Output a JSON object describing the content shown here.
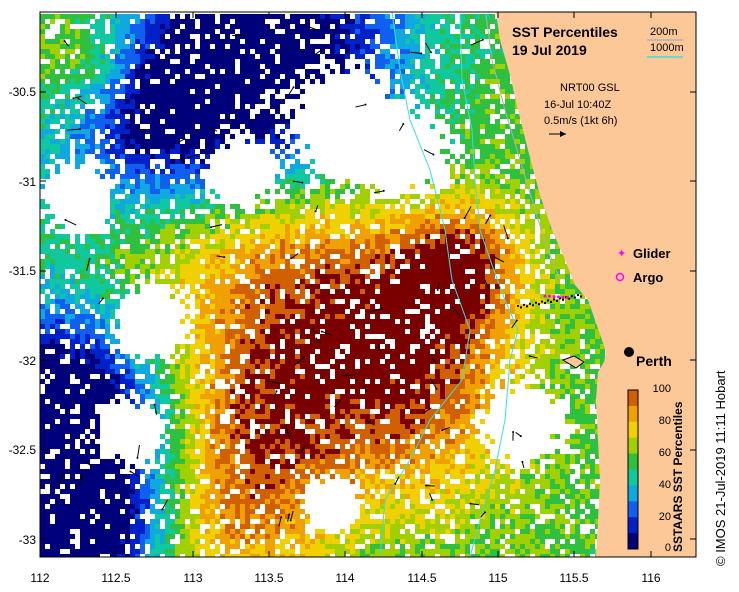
{
  "title": {
    "line1": "SST Percentiles",
    "line2": "19 Jul 2019"
  },
  "depth_legend": {
    "label_200": "200m",
    "label_1000": "1000m",
    "color_200": "#b0b0b0",
    "color_1000": "#36e0e0"
  },
  "current": {
    "line1": "NRT00 GSL",
    "line2": "16-Jul 10:40Z",
    "line3": "0.5m/s (1kt 6h)"
  },
  "markers": {
    "glider": "Glider",
    "argo": "Argo",
    "glider_color": "#ff00ff",
    "argo_color": "#ff00ff"
  },
  "city": {
    "label": "Perth",
    "icon": "city-dot-icon"
  },
  "colorbar": {
    "title": "SSTAARS SST Percentiles",
    "ticks": [
      "100",
      "80",
      "60",
      "40",
      "20",
      "0"
    ]
  },
  "credit": "© IMOS 21-Jul-2019 11:11 Hobart",
  "axes": {
    "y_ticks": [
      "-30.5",
      "-31",
      "-31.5",
      "-32",
      "-32.5",
      "-33"
    ],
    "x_ticks": [
      "112",
      "112.5",
      "113",
      "113.5",
      "114",
      "114.5",
      "115",
      "115.5",
      "116"
    ]
  },
  "colors": {
    "land": "#fcc898",
    "ocean": "#ffffff"
  }
}
